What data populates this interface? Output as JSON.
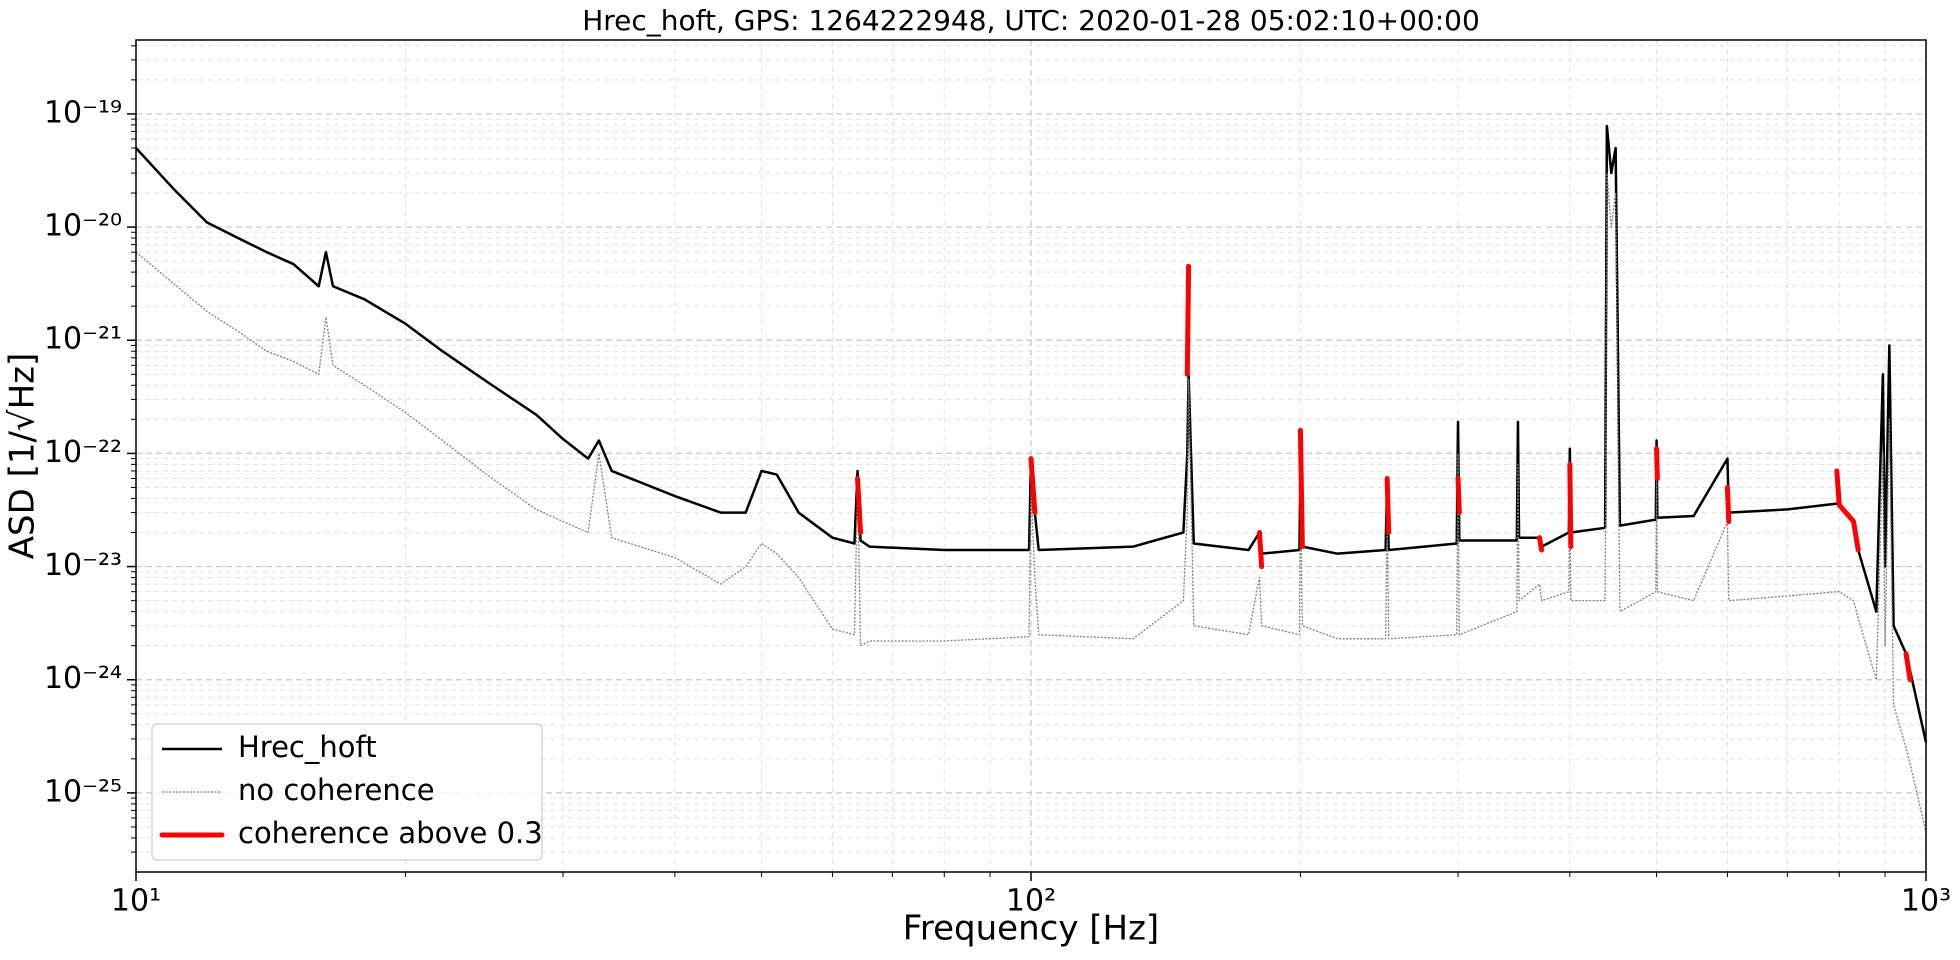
{
  "chart_data": {
    "type": "line",
    "title": "Hrec_hoft, GPS: 1264222948, UTC: 2020-01-28 05:02:10+00:00",
    "xlabel": "Frequency [Hz]",
    "ylabel": "ASD [1/√Hz]",
    "xscale": "log",
    "yscale": "log",
    "grid": true,
    "legend": "lower left",
    "xlim": [
      10,
      1000
    ],
    "ylim": [
      2e-26,
      4.5e-19
    ],
    "xticks": [
      {
        "value": 10,
        "label": "10¹"
      },
      {
        "value": 100,
        "label": "10²"
      },
      {
        "value": 1000,
        "label": "10³"
      }
    ],
    "yticks": [
      {
        "value": 1e-25,
        "label": "10⁻²⁵"
      },
      {
        "value": 1e-24,
        "label": "10⁻²⁴"
      },
      {
        "value": 1e-23,
        "label": "10⁻²³"
      },
      {
        "value": 1e-22,
        "label": "10⁻²²"
      },
      {
        "value": 1e-21,
        "label": "10⁻²¹"
      },
      {
        "value": 1e-20,
        "label": "10⁻²⁰"
      },
      {
        "value": 1e-19,
        "label": "10⁻¹⁹"
      }
    ],
    "xminor_ticks": [
      20,
      30,
      40,
      50,
      60,
      70,
      80,
      90,
      200,
      300,
      400,
      500,
      600,
      700,
      800,
      900
    ],
    "yminor_ticks": [
      3e-26,
      4e-26,
      5e-26,
      6e-26,
      7e-26,
      8e-26,
      9e-26,
      2e-25,
      3e-25,
      4e-25,
      5e-25,
      6e-25,
      7e-25,
      8e-25,
      9e-25,
      2e-24,
      3e-24,
      4e-24,
      5e-24,
      6e-24,
      7e-24,
      8e-24,
      9e-24,
      2e-23,
      3e-23,
      4e-23,
      5e-23,
      6e-23,
      7e-23,
      8e-23,
      9e-23,
      2e-22,
      3e-22,
      4e-22,
      5e-22,
      6e-22,
      7e-22,
      8e-22,
      9e-22,
      2e-21,
      3e-21,
      4e-21,
      5e-21,
      6e-21,
      7e-21,
      8e-21,
      9e-21,
      2e-20,
      3e-20,
      4e-20,
      5e-20,
      6e-20,
      7e-20,
      8e-20,
      9e-20,
      2e-19,
      3e-19,
      4e-19
    ],
    "x": [
      10,
      11,
      12,
      13,
      14,
      15,
      16,
      16.3,
      16.6,
      18,
      20,
      22,
      25,
      28,
      30,
      32,
      32.9,
      34,
      40,
      45,
      48,
      50,
      52,
      55,
      60,
      63.5,
      64,
      64.5,
      66,
      80,
      99.5,
      100,
      101,
      102,
      130,
      148,
      149.5,
      150,
      152,
      175,
      180,
      181,
      199.5,
      200,
      201,
      220,
      249,
      250,
      251,
      299,
      300,
      301,
      349,
      350,
      351,
      370,
      372,
      399,
      400,
      401,
      438,
      440,
      445,
      450,
      455,
      499,
      500,
      501,
      550,
      600,
      602,
      700,
      795,
      800,
      830,
      840,
      880,
      895,
      900,
      910,
      920,
      950,
      960,
      1000
    ],
    "series": [
      {
        "name": "Hrec_hoft",
        "color": "#000000",
        "style": "solid",
        "values": [
          5e-20,
          2.2e-20,
          1.1e-20,
          8e-21,
          6e-21,
          4.7e-21,
          3e-21,
          6e-21,
          3e-21,
          2.3e-21,
          1.4e-21,
          8e-22,
          4e-22,
          2.2e-22,
          1.34e-22,
          9e-23,
          1.3e-22,
          7e-23,
          4.2e-23,
          3e-23,
          3e-23,
          7e-23,
          6.5e-23,
          3e-23,
          1.8e-23,
          1.6e-23,
          7e-23,
          1.7e-23,
          1.5e-23,
          1.4e-23,
          1.4e-23,
          9e-23,
          3e-23,
          1.4e-23,
          1.5e-23,
          2e-23,
          1e-22,
          5e-22,
          1.6e-23,
          1.4e-23,
          2e-23,
          1.3e-23,
          1.4e-23,
          8e-23,
          1.5e-23,
          1.3e-23,
          1.4e-23,
          6e-23,
          1.4e-23,
          1.6e-23,
          1.9e-22,
          1.7e-23,
          1.7e-23,
          1.9e-22,
          1.8e-23,
          1.8e-23,
          1.5e-23,
          2e-23,
          1.1e-22,
          2e-23,
          2.2e-23,
          7.8e-20,
          3e-20,
          5e-20,
          2.3e-23,
          2.6e-23,
          1.3e-22,
          2.7e-23,
          2.8e-23,
          9e-23,
          3e-23,
          3.2e-23,
          3.6e-23,
          3.5e-23,
          2.5e-23,
          1.4e-23,
          4e-24,
          5e-22,
          1e-23,
          9e-22,
          3e-24,
          1.7e-24,
          1.2e-24,
          2.8e-25
        ]
      },
      {
        "name": "no coherence",
        "color": "#808080",
        "style": "dotted",
        "values": [
          6e-21,
          3.2e-21,
          1.8e-21,
          1.2e-21,
          8e-22,
          6.5e-22,
          5e-22,
          1.6e-21,
          6e-22,
          4e-22,
          2.3e-22,
          1.3e-22,
          6e-23,
          3.2e-23,
          2.5e-23,
          2e-23,
          1e-22,
          1.8e-23,
          1.2e-23,
          7e-24,
          1e-23,
          1.6e-23,
          1.3e-23,
          8e-24,
          2.8e-24,
          2.5e-24,
          6e-23,
          2e-24,
          2.2e-24,
          2.2e-24,
          2.4e-24,
          5e-23,
          8e-24,
          2.5e-24,
          2.3e-24,
          5e-24,
          3e-23,
          4.5e-22,
          3e-24,
          2.5e-24,
          8e-24,
          3e-24,
          2.5e-24,
          5e-23,
          3e-24,
          2.3e-24,
          2.3e-24,
          3e-23,
          2.3e-24,
          2.5e-24,
          1e-22,
          2.5e-24,
          4e-24,
          8e-23,
          5e-24,
          7e-24,
          5e-24,
          6e-24,
          5e-23,
          5e-24,
          5e-24,
          3e-20,
          1e-20,
          2e-20,
          4e-24,
          6e-24,
          6e-23,
          6e-24,
          5e-24,
          2.5e-23,
          5e-24,
          5.5e-24,
          6e-24,
          6e-24,
          5e-24,
          3.5e-24,
          1e-24,
          1e-22,
          2e-24,
          2e-22,
          6e-25,
          2.5e-25,
          1.8e-25,
          4.5e-26
        ]
      },
      {
        "name": "coherence above 0.3",
        "color": "#ff0000",
        "style": "thick",
        "values": [
          null,
          null,
          null,
          null,
          null,
          null,
          null,
          null,
          null,
          null,
          null,
          null,
          null,
          null,
          null,
          null,
          null,
          null,
          null,
          null,
          null,
          null,
          null,
          null,
          null,
          null,
          6e-23,
          2e-23,
          null,
          null,
          null,
          9e-23,
          3e-23,
          null,
          null,
          null,
          5e-22,
          4.5e-21,
          null,
          null,
          2e-23,
          1e-23,
          null,
          1.6e-22,
          1.5e-23,
          null,
          null,
          6e-23,
          2e-23,
          null,
          6e-23,
          3e-23,
          null,
          null,
          null,
          1.8e-23,
          1.4e-23,
          null,
          8e-23,
          1.5e-23,
          null,
          null,
          null,
          null,
          null,
          null,
          1.1e-22,
          6e-23,
          null,
          5e-23,
          2.5e-23,
          null,
          7e-23,
          3.5e-23,
          2.5e-23,
          1.4e-23,
          null,
          null,
          null,
          null,
          null,
          1.7e-24,
          1e-24,
          null
        ]
      }
    ]
  }
}
